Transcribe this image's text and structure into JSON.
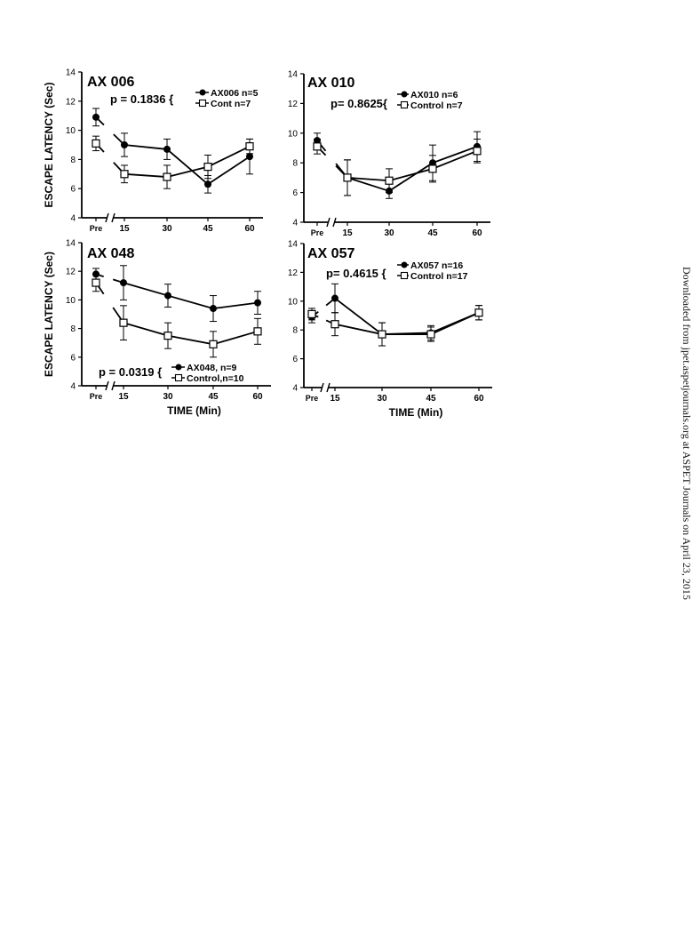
{
  "watermark": "Downloaded from jpet.aspetjournals.org at ASPET Journals on April 23, 2015",
  "chart_data": [
    {
      "type": "line",
      "title": "AX 006",
      "p_value": "p = 0.1836 {",
      "ylabel": "ESCAPE LATENCY (Sec)",
      "xlabel": "",
      "ylim": [
        4,
        14
      ],
      "yticks": [
        "4",
        "6",
        "8",
        "10",
        "12",
        "14"
      ],
      "categories": [
        "Pre",
        "15",
        "30",
        "45",
        "60"
      ],
      "series": [
        {
          "name": "AX006 n=5",
          "marker": "filled-circle",
          "values": [
            10.9,
            9.0,
            8.7,
            6.3,
            8.2
          ],
          "errors": [
            0.6,
            0.8,
            0.7,
            0.6,
            1.2
          ]
        },
        {
          "name": "Cont n=7",
          "marker": "open-square",
          "values": [
            9.1,
            7.0,
            6.8,
            7.5,
            8.9
          ],
          "errors": [
            0.5,
            0.6,
            0.8,
            0.8,
            0.5
          ]
        }
      ]
    },
    {
      "type": "line",
      "title": "AX 010",
      "p_value": "p= 0.8625{",
      "ylabel": "",
      "xlabel": "",
      "ylim": [
        4,
        14
      ],
      "yticks": [
        "4",
        "6",
        "8",
        "10",
        "12",
        "14"
      ],
      "categories": [
        "Pre",
        "15",
        "30",
        "45",
        "60"
      ],
      "series": [
        {
          "name": "AX010 n=6",
          "marker": "filled-circle",
          "values": [
            9.5,
            7.0,
            6.1,
            8.0,
            9.1
          ],
          "errors": [
            0.5,
            1.2,
            0.5,
            1.2,
            1.0
          ]
        },
        {
          "name": "Control n=7",
          "marker": "open-square",
          "values": [
            9.1,
            7.0,
            6.8,
            7.6,
            8.8
          ],
          "errors": [
            0.5,
            1.2,
            0.8,
            0.9,
            0.8
          ]
        }
      ]
    },
    {
      "type": "line",
      "title": "AX 048",
      "p_value": "p = 0.0319 {",
      "ylabel": "ESCAPE LATENCY (Sec)",
      "xlabel": "TIME  (Min)",
      "ylim": [
        4,
        14
      ],
      "yticks": [
        "4",
        "6",
        "8",
        "10",
        "12",
        "14"
      ],
      "categories": [
        "Pre",
        "15",
        "30",
        "45",
        "60"
      ],
      "series": [
        {
          "name": "AX048, n=9",
          "marker": "filled-circle",
          "values": [
            11.8,
            11.2,
            10.3,
            9.4,
            9.8
          ],
          "errors": [
            0.4,
            1.2,
            0.8,
            0.9,
            0.8
          ]
        },
        {
          "name": "Control,n=10",
          "marker": "open-square",
          "values": [
            11.2,
            8.4,
            7.5,
            6.9,
            7.8
          ],
          "errors": [
            0.6,
            1.2,
            0.9,
            0.9,
            0.9
          ]
        }
      ]
    },
    {
      "type": "line",
      "title": "AX 057",
      "p_value": "p= 0.4615 {",
      "ylabel": "",
      "xlabel": "TIME  (Min)",
      "ylim": [
        4,
        14
      ],
      "yticks": [
        "4",
        "6",
        "8",
        "10",
        "12",
        "14"
      ],
      "categories": [
        "Pre",
        "15",
        "30",
        "45",
        "60"
      ],
      "series": [
        {
          "name": "AX057 n=16",
          "marker": "filled-circle",
          "values": [
            8.9,
            10.2,
            7.7,
            7.8,
            9.2
          ],
          "errors": [
            0.4,
            1.0,
            0.8,
            0.5,
            0.5
          ]
        },
        {
          "name": "Control n=17",
          "marker": "open-square",
          "values": [
            9.1,
            8.4,
            7.7,
            7.7,
            9.2
          ],
          "errors": [
            0.4,
            0.8,
            0.8,
            0.5,
            0.5
          ]
        }
      ]
    }
  ]
}
